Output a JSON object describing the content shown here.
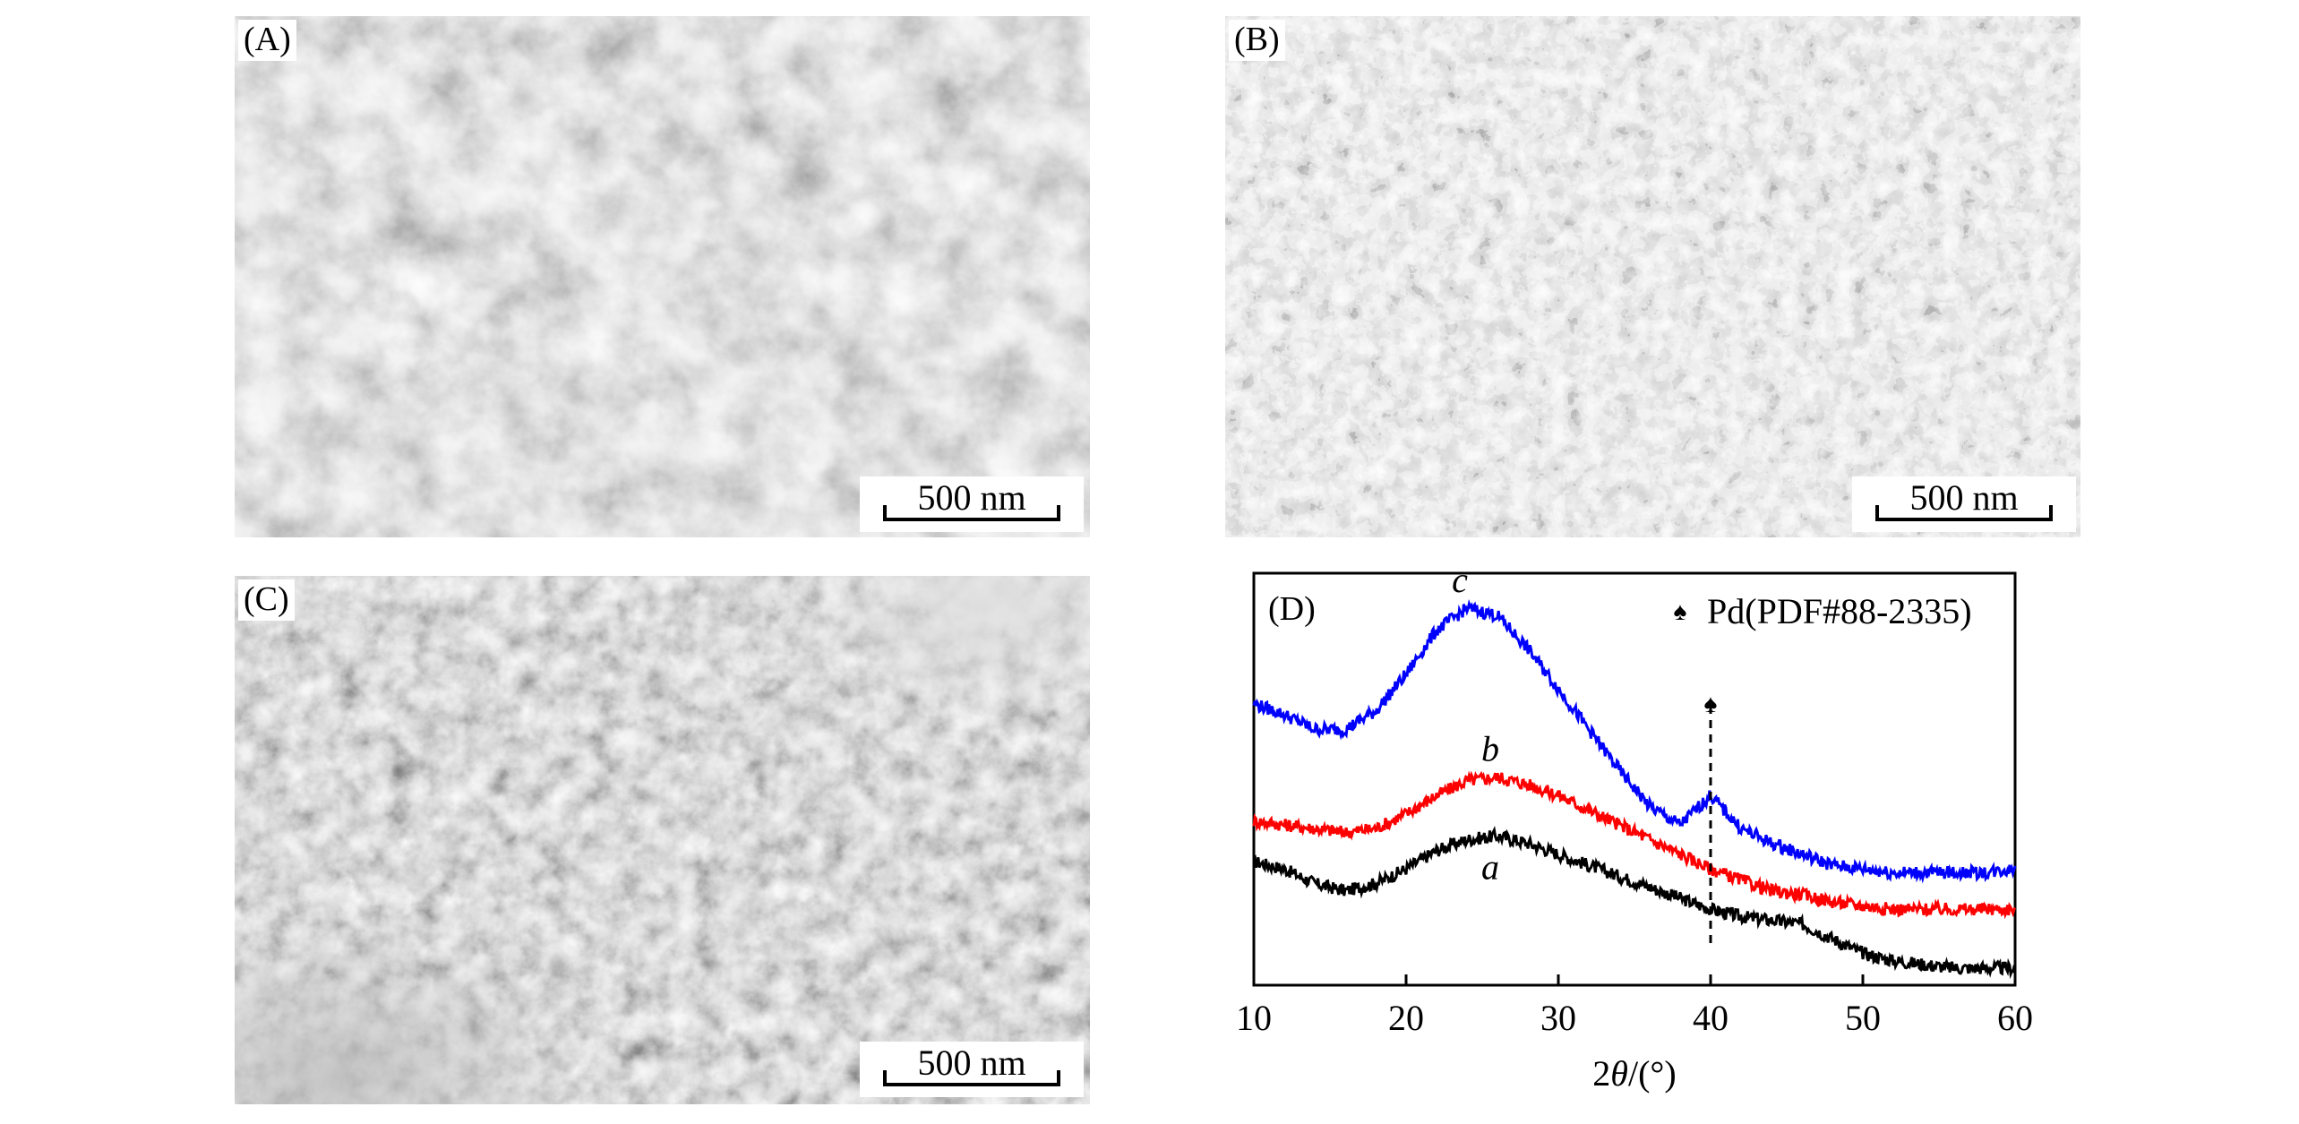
{
  "figure": {
    "panels": [
      {
        "id": "A",
        "label": "(A)",
        "scale_bar": "500 nm"
      },
      {
        "id": "B",
        "label": "(B)",
        "scale_bar": "500 nm"
      },
      {
        "id": "C",
        "label": "(C)",
        "scale_bar": "500 nm"
      },
      {
        "id": "D",
        "label": "(D)"
      }
    ]
  },
  "chart_data": {
    "type": "line",
    "panel_label": "(D)",
    "xlabel_prefix": "2",
    "xlabel_theta": "θ",
    "xlabel_unit": "/(°)",
    "xlim": [
      10,
      60
    ],
    "x_ticks": [
      "10",
      "20",
      "30",
      "40",
      "50",
      "60"
    ],
    "y_ticks": [],
    "legend": "Pd(PDF#88-2335)",
    "legend_marker": "♠",
    "reference_line_x": 40,
    "series": [
      {
        "name": "a",
        "color": "#000000",
        "x": [
          10,
          12,
          14,
          16,
          18,
          20,
          22,
          24,
          26,
          28,
          30,
          32,
          34,
          36,
          38,
          40,
          42,
          44,
          46,
          48,
          50,
          52,
          54,
          56,
          58,
          60
        ],
        "y": [
          0.3,
          0.28,
          0.24,
          0.22,
          0.24,
          0.28,
          0.33,
          0.36,
          0.37,
          0.35,
          0.32,
          0.29,
          0.26,
          0.23,
          0.2,
          0.17,
          0.15,
          0.14,
          0.13,
          0.09,
          0.05,
          0.03,
          0.02,
          0.01,
          0.01,
          0.01
        ]
      },
      {
        "name": "b",
        "color": "#ff0000",
        "x": [
          10,
          12,
          14,
          16,
          18,
          20,
          22,
          24,
          26,
          28,
          30,
          32,
          34,
          36,
          38,
          40,
          42,
          44,
          46,
          48,
          50,
          52,
          54,
          56,
          58,
          60
        ],
        "y": [
          0.41,
          0.4,
          0.39,
          0.38,
          0.39,
          0.43,
          0.48,
          0.52,
          0.53,
          0.51,
          0.48,
          0.44,
          0.4,
          0.36,
          0.32,
          0.28,
          0.25,
          0.22,
          0.21,
          0.19,
          0.18,
          0.17,
          0.17,
          0.17,
          0.17,
          0.17
        ]
      },
      {
        "name": "c",
        "color": "#0000ff",
        "x": [
          10,
          12,
          14,
          16,
          18,
          20,
          22,
          24,
          26,
          28,
          30,
          32,
          34,
          36,
          38,
          40,
          42,
          44,
          46,
          48,
          50,
          52,
          54,
          56,
          58,
          60
        ],
        "y": [
          0.73,
          0.7,
          0.66,
          0.66,
          0.71,
          0.81,
          0.93,
          0.99,
          0.97,
          0.88,
          0.77,
          0.66,
          0.55,
          0.45,
          0.4,
          0.48,
          0.39,
          0.35,
          0.32,
          0.29,
          0.28,
          0.27,
          0.27,
          0.27,
          0.27,
          0.28
        ]
      }
    ]
  }
}
